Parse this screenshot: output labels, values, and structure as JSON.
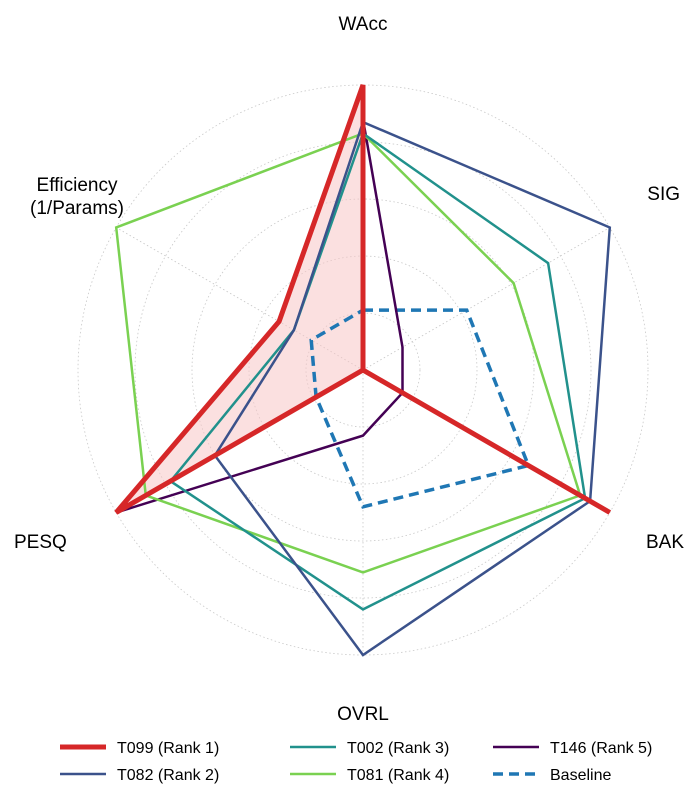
{
  "chart_data": {
    "type": "radar",
    "title": "",
    "axes": [
      "WAcc",
      "SIG",
      "BAK",
      "OVRL",
      "PESQ",
      "Efficiency\n(1/Params)"
    ],
    "rlim": [
      0,
      1
    ],
    "grid": true,
    "legend_position": "bottom",
    "series": [
      {
        "name": "T099 (Rank 1)",
        "color": "#d62728",
        "style": "solid",
        "width": "thick",
        "filled": true,
        "fill_color": "#f7c6c7",
        "values": [
          1.0,
          0.0,
          1.0,
          0.0,
          1.0,
          0.34
        ]
      },
      {
        "name": "T082 (Rank 2)",
        "color": "#3b528b",
        "style": "solid",
        "width": "normal",
        "filled": false,
        "values": [
          0.87,
          1.0,
          0.92,
          1.0,
          0.6,
          0.28
        ]
      },
      {
        "name": "T002 (Rank 3)",
        "color": "#21918c",
        "style": "solid",
        "width": "normal",
        "filled": false,
        "values": [
          0.83,
          0.75,
          0.9,
          0.84,
          0.78,
          0.28
        ]
      },
      {
        "name": "T081 (Rank 4)",
        "color": "#7ad151",
        "style": "solid",
        "width": "normal",
        "filled": false,
        "values": [
          0.83,
          0.61,
          0.88,
          0.71,
          0.88,
          1.0
        ]
      },
      {
        "name": "T146 (Rank 5)",
        "color": "#440154",
        "style": "solid",
        "width": "normal",
        "filled": false,
        "values": [
          0.88,
          0.16,
          0.16,
          0.23,
          1.0,
          0.0
        ]
      },
      {
        "name": "Baseline",
        "color": "#1f77b4",
        "style": "dashed",
        "width": "medium",
        "filled": false,
        "values": [
          0.21,
          0.42,
          0.67,
          0.48,
          0.19,
          0.21
        ]
      }
    ],
    "legend": [
      [
        "T099 (Rank 1)",
        "T002 (Rank 3)",
        "T146 (Rank 5)"
      ],
      [
        "T082 (Rank 2)",
        "T081 (Rank 4)",
        "Baseline"
      ]
    ]
  }
}
